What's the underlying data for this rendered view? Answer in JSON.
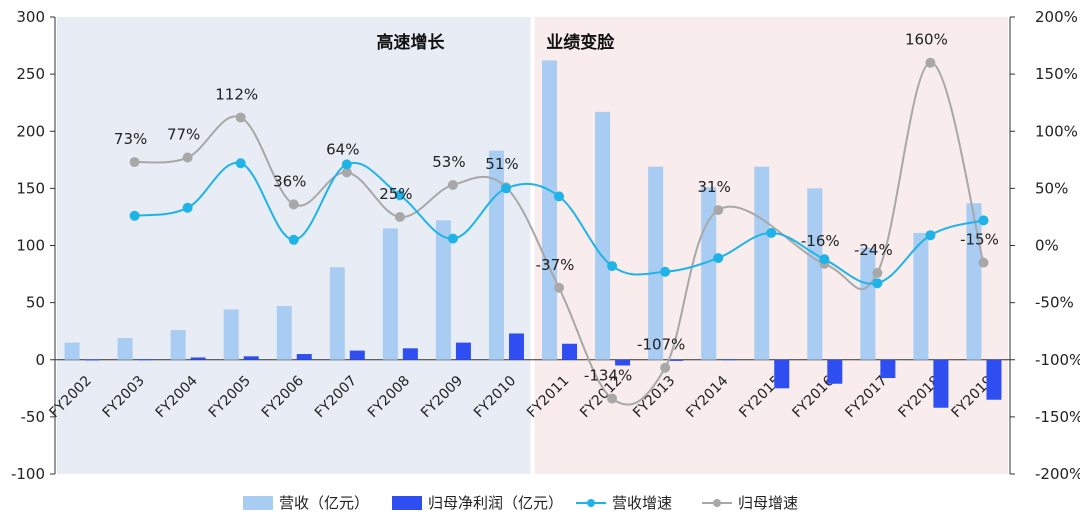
{
  "chart_data": {
    "type": "bar",
    "categories": [
      "FY2002",
      "FY2003",
      "FY2004",
      "FY2005",
      "FY2006",
      "FY2007",
      "FY2008",
      "FY2009",
      "FY2010",
      "FY2011",
      "FY2012",
      "FY2013",
      "FY2014",
      "FY2015",
      "FY2016",
      "FY2017",
      "FY2018",
      "FY2019"
    ],
    "series": [
      {
        "name": "营收（亿元）",
        "kind": "bar",
        "axis": "left",
        "color": "#a9cdf2",
        "values": [
          15,
          19,
          26,
          44,
          47,
          81,
          115,
          122,
          183,
          262,
          217,
          169,
          151,
          169,
          150,
          98,
          111,
          137
        ]
      },
      {
        "name": "归母净利润（亿元）",
        "kind": "bar",
        "axis": "left",
        "color": "#2e4ef2",
        "values": [
          0.3,
          0.5,
          2,
          3,
          5,
          8,
          10,
          15,
          23,
          14,
          -5,
          -1,
          0.5,
          -25,
          -21,
          -16,
          -42,
          -35
        ]
      },
      {
        "name": "营收增速",
        "kind": "line",
        "axis": "right",
        "color": "#1fb3e8",
        "values": [
          null,
          26,
          33,
          72,
          5,
          71,
          44,
          6,
          50,
          43,
          -18,
          -23,
          -11,
          11,
          -12,
          -33,
          9,
          22
        ]
      },
      {
        "name": "归母增速",
        "kind": "line",
        "axis": "right",
        "color": "#a8a8a8",
        "values": [
          null,
          73,
          77,
          112,
          36,
          64,
          25,
          53,
          51,
          -37,
          -134,
          -107,
          31,
          null,
          -16,
          -24,
          160,
          -15
        ]
      }
    ],
    "data_labels": [
      {
        "category": "FY2003",
        "text": "73%"
      },
      {
        "category": "FY2004",
        "text": "77%"
      },
      {
        "category": "FY2005",
        "text": "112%"
      },
      {
        "category": "FY2006",
        "text": "36%"
      },
      {
        "category": "FY2007",
        "text": "64%"
      },
      {
        "category": "FY2008",
        "text": "25%"
      },
      {
        "category": "FY2009",
        "text": "53%"
      },
      {
        "category": "FY2010",
        "text": "51%"
      },
      {
        "category": "FY2011",
        "text": "-37%"
      },
      {
        "category": "FY2012",
        "text": "-134%"
      },
      {
        "category": "FY2013",
        "text": "-107%"
      },
      {
        "category": "FY2014",
        "text": "31%"
      },
      {
        "category": "FY2016",
        "text": "-16%"
      },
      {
        "category": "FY2017",
        "text": "-24%"
      },
      {
        "category": "FY2018",
        "text": "160%"
      },
      {
        "category": "FY2019",
        "text": "-15%"
      }
    ],
    "phases": [
      {
        "label": "高速增长",
        "from": "FY2002",
        "to": "FY2010",
        "color": "#e8edf5"
      },
      {
        "label": "业绩变脸",
        "from": "FY2011",
        "to": "FY2019",
        "color": "#f8ecec"
      }
    ],
    "ylim_left": [
      -100,
      300
    ],
    "yticks_left": [
      "300",
      "250",
      "200",
      "150",
      "100",
      "50",
      "0",
      "-50",
      "-100"
    ],
    "ylim_right": [
      -200,
      200
    ],
    "yticks_right": [
      "200%",
      "150%",
      "100%",
      "50%",
      "0%",
      "-50%",
      "-100%",
      "-150%",
      "-200%"
    ],
    "legend_position": "bottom",
    "grid": false
  }
}
